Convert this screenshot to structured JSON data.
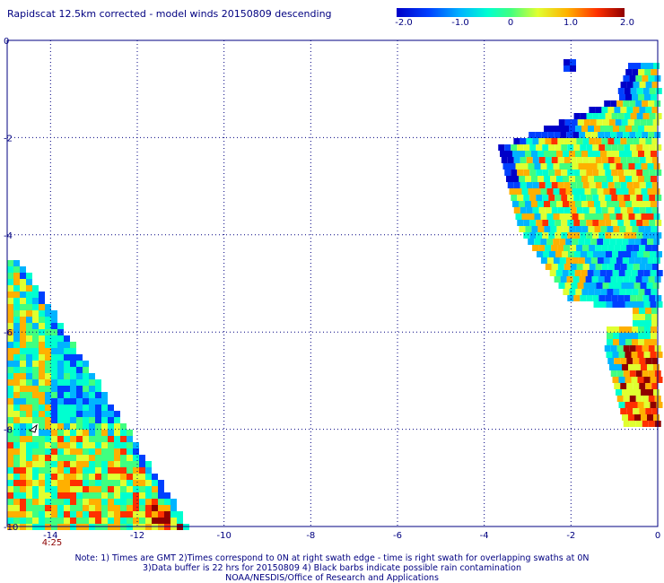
{
  "title": "Rapidscat 12.5km corrected - model winds 20150809 descending",
  "colorbar": {
    "labels": [
      "-2.0",
      "-1.0",
      "0",
      "1.0",
      "2.0"
    ],
    "range": [
      -2.0,
      2.0
    ],
    "colors": [
      "#0000c8",
      "#0040ff",
      "#00b4ff",
      "#00ffd0",
      "#40ff80",
      "#e0ff30",
      "#ffb000",
      "#ff3000",
      "#900000"
    ]
  },
  "axes": {
    "x_ticks": [
      "-14",
      "-12",
      "-10",
      "-8",
      "-6",
      "-4",
      "-2",
      "0"
    ],
    "y_ticks": [
      "0",
      "-2",
      "-4",
      "-6",
      "-8",
      "-10"
    ],
    "x_range": [
      -15,
      0
    ],
    "y_range": [
      0,
      -10
    ],
    "grid": "dotted",
    "tick_color": "#000080"
  },
  "time_label": "4:25",
  "time_label_color": "#8b0000",
  "notes": [
    "Note: 1) Times are GMT 2)Times correspond to 0N at right swath edge - time is right swath for overlapping swaths at 0N",
    "3)Data buffer is 22 hrs for 20150809 4) Black barbs indicate possible rain contamination",
    "NOAA/NESDIS/Office of Research and Applications"
  ]
}
